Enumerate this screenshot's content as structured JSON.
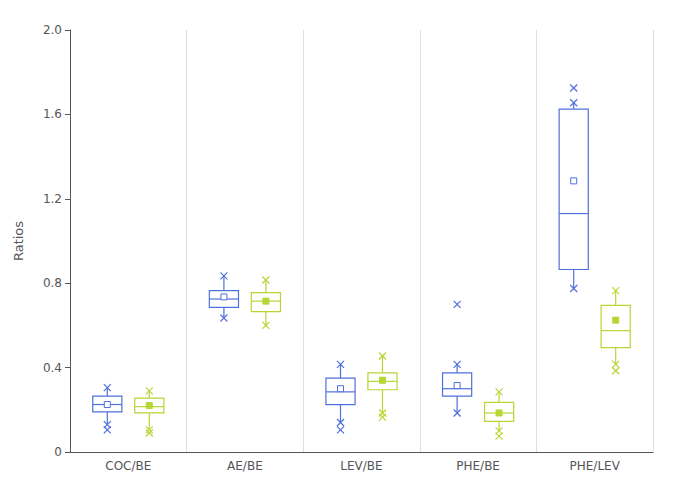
{
  "chart_data": {
    "type": "boxplot",
    "ylabel": "Ratios",
    "categories": [
      "COC/BE",
      "AE/BE",
      "LEV/BE",
      "PHE/BE",
      "PHE/LEV"
    ],
    "ylim": [
      0,
      2.0
    ],
    "yticks": [
      0,
      0.4,
      0.8,
      1.2,
      1.6,
      {
        "value": 2.0,
        "label": "2.0"
      }
    ],
    "grid": false,
    "series": [
      {
        "marker": "square_open",
        "values": [
          {
            "whislo": 0.13,
            "q1": 0.19,
            "med": 0.225,
            "q3": 0.265,
            "whishi": 0.305,
            "mean": 0.225,
            "fliers": [
              0.105
            ]
          },
          {
            "whislo": 0.635,
            "q1": 0.685,
            "med": 0.725,
            "q3": 0.765,
            "whishi": 0.835,
            "mean": 0.735,
            "fliers": []
          },
          {
            "whislo": 0.14,
            "q1": 0.225,
            "med": 0.285,
            "q3": 0.35,
            "whishi": 0.415,
            "mean": 0.3,
            "fliers": [
              0.105
            ]
          },
          {
            "whislo": 0.185,
            "q1": 0.265,
            "med": 0.3,
            "q3": 0.375,
            "whishi": 0.415,
            "mean": 0.315,
            "fliers": [
              0.7
            ]
          },
          {
            "whislo": 0.775,
            "q1": 0.865,
            "med": 1.13,
            "q3": 1.625,
            "whishi": 1.655,
            "mean": 1.285,
            "fliers": [
              1.725
            ]
          }
        ]
      },
      {
        "marker": "square",
        "values": [
          {
            "whislo": 0.105,
            "q1": 0.185,
            "med": 0.215,
            "q3": 0.255,
            "whishi": 0.29,
            "mean": 0.22,
            "fliers": [
              0.09
            ]
          },
          {
            "whislo": 0.6,
            "q1": 0.665,
            "med": 0.715,
            "q3": 0.755,
            "whishi": 0.815,
            "mean": 0.715,
            "fliers": []
          },
          {
            "whislo": 0.185,
            "q1": 0.295,
            "med": 0.335,
            "q3": 0.375,
            "whishi": 0.455,
            "mean": 0.34,
            "fliers": [
              0.165
            ]
          },
          {
            "whislo": 0.1,
            "q1": 0.145,
            "med": 0.185,
            "q3": 0.235,
            "whishi": 0.285,
            "mean": 0.185,
            "fliers": [
              0.075
            ]
          },
          {
            "whislo": 0.415,
            "q1": 0.495,
            "med": 0.575,
            "q3": 0.695,
            "whishi": 0.765,
            "mean": 0.625,
            "fliers": [
              0.385
            ]
          }
        ]
      }
    ]
  }
}
